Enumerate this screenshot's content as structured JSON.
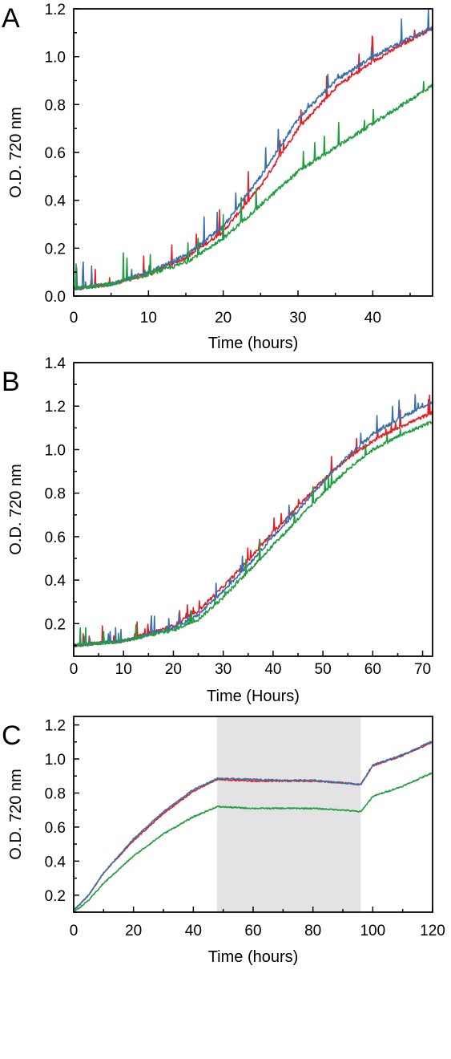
{
  "figure": {
    "colors": {
      "red": "#e41e26",
      "blue": "#3c6ea8",
      "green": "#1f9e3f",
      "shade": "#e3e3e3"
    }
  },
  "chart_data": [
    {
      "panel": "A",
      "type": "line",
      "xlabel": "Time (hours)",
      "ylabel": "O.D. 720 nm",
      "xlim": [
        0,
        48
      ],
      "ylim": [
        0.0,
        1.2
      ],
      "xticks": [
        0,
        10,
        20,
        30,
        40
      ],
      "xtick_labels": [
        "0",
        "10",
        "20",
        "30",
        "40"
      ],
      "yticks": [
        0.0,
        0.2,
        0.4,
        0.6,
        0.8,
        1.0,
        1.2
      ],
      "ytick_labels": [
        "0.0",
        "0.2",
        "0.4",
        "0.6",
        "0.8",
        "1.0",
        "1.2"
      ],
      "grid": false,
      "legend": "none",
      "series": [
        {
          "color": "#e41e26",
          "x": [
            0,
            5,
            10,
            15,
            20,
            25,
            30,
            35,
            40,
            45,
            48
          ],
          "y": [
            0.03,
            0.05,
            0.09,
            0.16,
            0.27,
            0.46,
            0.7,
            0.87,
            0.98,
            1.07,
            1.12
          ]
        },
        {
          "color": "#3c6ea8",
          "x": [
            0,
            5,
            10,
            15,
            20,
            25,
            30,
            35,
            40,
            45,
            48
          ],
          "y": [
            0.03,
            0.05,
            0.1,
            0.17,
            0.29,
            0.5,
            0.74,
            0.9,
            1.0,
            1.08,
            1.12
          ]
        },
        {
          "color": "#1f9e3f",
          "x": [
            0,
            5,
            10,
            15,
            20,
            25,
            30,
            35,
            40,
            45,
            48
          ],
          "y": [
            0.03,
            0.05,
            0.09,
            0.14,
            0.24,
            0.38,
            0.52,
            0.62,
            0.72,
            0.82,
            0.88
          ]
        }
      ]
    },
    {
      "panel": "B",
      "type": "line",
      "xlabel": "Time (Hours)",
      "ylabel": "O.D. 720 nm",
      "xlim": [
        0,
        72
      ],
      "ylim": [
        0.05,
        1.4
      ],
      "xticks": [
        0,
        10,
        20,
        30,
        40,
        50,
        60,
        70
      ],
      "xtick_labels": [
        "0",
        "10",
        "20",
        "30",
        "40",
        "50",
        "60",
        "70"
      ],
      "yticks": [
        0.2,
        0.4,
        0.6,
        0.8,
        1.0,
        1.2,
        1.4
      ],
      "ytick_labels": [
        "0.2",
        "0.4",
        "0.6",
        "0.8",
        "1.0",
        "1.2",
        "1.4"
      ],
      "grid": false,
      "legend": "none",
      "series": [
        {
          "color": "#e41e26",
          "x": [
            0,
            10,
            20,
            25,
            30,
            35,
            40,
            45,
            50,
            55,
            60,
            65,
            72
          ],
          "y": [
            0.1,
            0.12,
            0.19,
            0.26,
            0.37,
            0.49,
            0.62,
            0.74,
            0.86,
            0.96,
            1.04,
            1.1,
            1.17
          ]
        },
        {
          "color": "#3c6ea8",
          "x": [
            0,
            10,
            20,
            25,
            30,
            35,
            40,
            45,
            50,
            55,
            60,
            65,
            72
          ],
          "y": [
            0.1,
            0.12,
            0.18,
            0.24,
            0.35,
            0.47,
            0.6,
            0.72,
            0.85,
            0.97,
            1.07,
            1.14,
            1.22
          ]
        },
        {
          "color": "#1f9e3f",
          "x": [
            0,
            10,
            20,
            25,
            30,
            35,
            40,
            45,
            50,
            55,
            60,
            65,
            72
          ],
          "y": [
            0.1,
            0.12,
            0.17,
            0.22,
            0.32,
            0.44,
            0.56,
            0.68,
            0.8,
            0.91,
            1.0,
            1.06,
            1.13
          ]
        }
      ]
    },
    {
      "panel": "C",
      "type": "line",
      "xlabel": "Time (hours)",
      "ylabel": "O.D. 720 nm",
      "xlim": [
        0,
        120
      ],
      "ylim": [
        0.1,
        1.25
      ],
      "xticks": [
        0,
        20,
        40,
        60,
        80,
        100,
        120
      ],
      "xtick_labels": [
        "0",
        "20",
        "40",
        "60",
        "80",
        "100",
        "120"
      ],
      "yticks": [
        0.2,
        0.4,
        0.6,
        0.8,
        1.0,
        1.2
      ],
      "ytick_labels": [
        "0.2",
        "0.4",
        "0.6",
        "0.8",
        "1.0",
        "1.2"
      ],
      "grid": false,
      "legend": "none",
      "shaded_region": {
        "x": [
          48,
          96
        ]
      },
      "series": [
        {
          "color": "#e41e26",
          "x": [
            0,
            5,
            10,
            20,
            30,
            40,
            48,
            60,
            70,
            80,
            90,
            96,
            100,
            110,
            120
          ],
          "y": [
            0.11,
            0.2,
            0.33,
            0.52,
            0.68,
            0.81,
            0.88,
            0.87,
            0.87,
            0.87,
            0.86,
            0.85,
            0.96,
            1.02,
            1.1
          ]
        },
        {
          "color": "#3c6ea8",
          "x": [
            0,
            5,
            10,
            20,
            30,
            40,
            48,
            60,
            70,
            80,
            90,
            96,
            100,
            110,
            120
          ],
          "y": [
            0.11,
            0.2,
            0.33,
            0.53,
            0.69,
            0.82,
            0.885,
            0.88,
            0.875,
            0.875,
            0.86,
            0.85,
            0.965,
            1.025,
            1.105
          ]
        },
        {
          "color": "#1f9e3f",
          "x": [
            0,
            5,
            10,
            20,
            30,
            40,
            48,
            60,
            70,
            80,
            90,
            96,
            100,
            110,
            120
          ],
          "y": [
            0.1,
            0.17,
            0.27,
            0.43,
            0.56,
            0.66,
            0.72,
            0.71,
            0.71,
            0.71,
            0.7,
            0.69,
            0.78,
            0.84,
            0.92
          ]
        }
      ]
    }
  ]
}
